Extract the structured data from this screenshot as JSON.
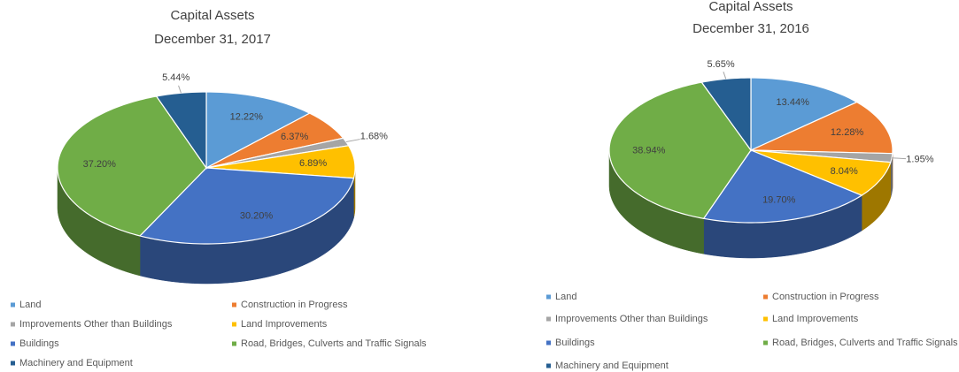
{
  "chart_data": [
    {
      "type": "pie",
      "title": "Capital Assets",
      "subtitle": "December 31, 2017",
      "categories": [
        "Land",
        "Construction in Progress",
        "Improvements Other than Buildings",
        "Land Improvements",
        "Buildings",
        "Road, Bridges, Culverts and Traffic Signals",
        "Machinery and Equipment"
      ],
      "values": [
        12.22,
        6.37,
        1.68,
        6.89,
        30.2,
        37.2,
        5.44
      ],
      "value_labels": [
        "12.22%",
        "6.37%",
        "1.68%",
        "6.89%",
        "30.20%",
        "37.20%",
        "5.44%"
      ],
      "colors": [
        "#5b9bd5",
        "#ed7d31",
        "#a5a5a5",
        "#ffc000",
        "#4472c4",
        "#70ad47",
        "#255e91"
      ]
    },
    {
      "type": "pie",
      "title": "Capital Assets",
      "subtitle": "December 31, 2016",
      "categories": [
        "Land",
        "Construction in Progress",
        "Improvements Other than Buildings",
        "Land Improvements",
        "Buildings",
        "Road, Bridges, Culverts and Traffic Signals",
        "Machinery and Equipment"
      ],
      "values": [
        13.44,
        12.28,
        1.95,
        8.04,
        19.7,
        38.94,
        5.65
      ],
      "value_labels": [
        "13.44%",
        "12.28%",
        "1.95%",
        "8.04%",
        "19.70%",
        "38.94%",
        "5.65%"
      ],
      "colors": [
        "#5b9bd5",
        "#ed7d31",
        "#a5a5a5",
        "#ffc000",
        "#4472c4",
        "#70ad47",
        "#255e91"
      ]
    }
  ]
}
